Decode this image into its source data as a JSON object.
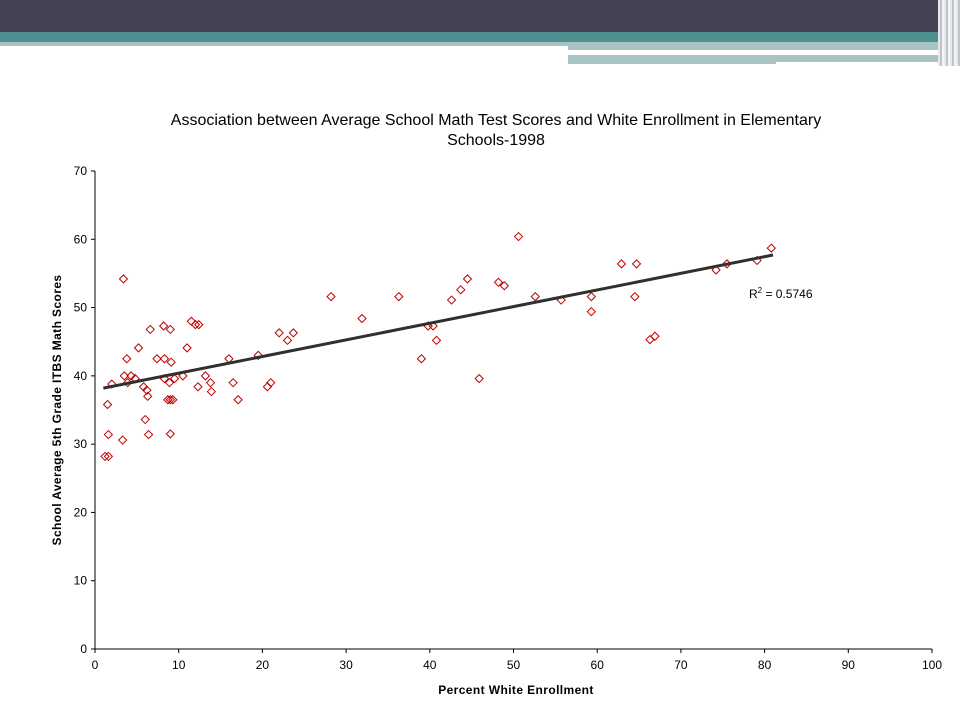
{
  "slide": {
    "header_colors": {
      "dark": "#424254",
      "teal": "#4e8f8f",
      "light": "#a9c2c2"
    }
  },
  "chart_data": {
    "type": "scatter",
    "title_lines": [
      "Association between Average School Math Test Scores and White Enrollment in Elementary",
      "Schools-1998"
    ],
    "xlabel": "Percent White Enrollment",
    "ylabel": "School Average 5th Grade ITBS Math Scores",
    "xlim": [
      0,
      100
    ],
    "ylim": [
      0,
      70
    ],
    "x_ticks": [
      0,
      10,
      20,
      30,
      40,
      50,
      60,
      70,
      80,
      90,
      100
    ],
    "y_ticks": [
      0,
      10,
      20,
      30,
      40,
      50,
      60,
      70
    ],
    "grid": false,
    "marker": "diamond-open",
    "point_color": "#c00000",
    "trendline_color": "#303030",
    "trendline": {
      "type": "linear",
      "x": [
        1,
        81
      ],
      "y": [
        38.2,
        57.7
      ]
    },
    "r2_label": "R",
    "r2_sup": "2",
    "r2_value": " = 0.5746",
    "points": [
      [
        1.2,
        28.2
      ],
      [
        1.6,
        28.2
      ],
      [
        1.5,
        35.8
      ],
      [
        1.6,
        31.4
      ],
      [
        2.0,
        38.8
      ],
      [
        3.3,
        30.6
      ],
      [
        3.4,
        54.2
      ],
      [
        3.5,
        40.0
      ],
      [
        3.8,
        42.5
      ],
      [
        3.9,
        39.0
      ],
      [
        4.3,
        40.0
      ],
      [
        4.8,
        39.6
      ],
      [
        5.2,
        44.1
      ],
      [
        5.8,
        38.4
      ],
      [
        6.0,
        33.6
      ],
      [
        6.2,
        37.9
      ],
      [
        6.3,
        37.0
      ],
      [
        6.4,
        31.4
      ],
      [
        6.6,
        46.8
      ],
      [
        7.4,
        42.5
      ],
      [
        8.2,
        47.3
      ],
      [
        8.3,
        42.5
      ],
      [
        8.3,
        39.6
      ],
      [
        8.7,
        36.5
      ],
      [
        8.9,
        39.0
      ],
      [
        9.0,
        36.5
      ],
      [
        9.0,
        46.8
      ],
      [
        9.0,
        31.5
      ],
      [
        9.1,
        42.0
      ],
      [
        9.3,
        36.5
      ],
      [
        9.5,
        39.6
      ],
      [
        10.5,
        40.0
      ],
      [
        11.0,
        44.1
      ],
      [
        11.5,
        48.0
      ],
      [
        12.0,
        47.5
      ],
      [
        12.3,
        38.4
      ],
      [
        12.4,
        47.5
      ],
      [
        13.2,
        40.0
      ],
      [
        13.8,
        39.0
      ],
      [
        13.9,
        37.7
      ],
      [
        16.0,
        42.5
      ],
      [
        16.5,
        39.0
      ],
      [
        17.1,
        36.5
      ],
      [
        19.5,
        43.0
      ],
      [
        20.6,
        38.4
      ],
      [
        21.0,
        39.0
      ],
      [
        22.0,
        46.3
      ],
      [
        23.0,
        45.2
      ],
      [
        23.7,
        46.3
      ],
      [
        28.2,
        51.6
      ],
      [
        31.9,
        48.4
      ],
      [
        36.3,
        51.6
      ],
      [
        39.0,
        42.5
      ],
      [
        39.8,
        47.3
      ],
      [
        40.4,
        47.3
      ],
      [
        40.8,
        45.2
      ],
      [
        42.6,
        51.1
      ],
      [
        43.7,
        52.6
      ],
      [
        44.5,
        54.2
      ],
      [
        45.9,
        39.6
      ],
      [
        48.2,
        53.7
      ],
      [
        48.9,
        53.2
      ],
      [
        50.6,
        60.4
      ],
      [
        52.6,
        51.6
      ],
      [
        55.7,
        51.1
      ],
      [
        59.3,
        51.6
      ],
      [
        59.3,
        49.4
      ],
      [
        62.9,
        56.4
      ],
      [
        64.5,
        51.6
      ],
      [
        64.7,
        56.4
      ],
      [
        66.3,
        45.3
      ],
      [
        66.9,
        45.8
      ],
      [
        74.2,
        55.5
      ],
      [
        75.5,
        56.4
      ],
      [
        79.1,
        56.9
      ],
      [
        80.8,
        58.7
      ]
    ]
  }
}
